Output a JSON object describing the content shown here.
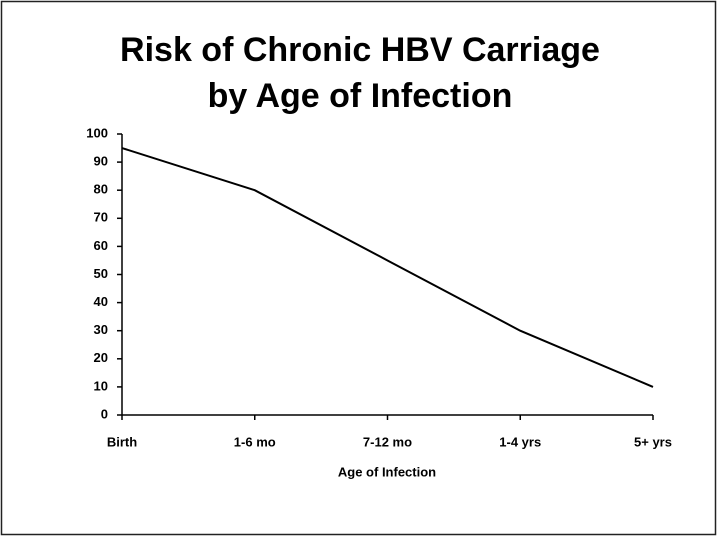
{
  "chart_data": {
    "type": "line",
    "title": [
      "Risk of Chronic HBV Carriage",
      "by Age of Infection"
    ],
    "x_label": "Age of Infection",
    "categories": [
      "Birth",
      "1-6 mo",
      "7-12 mo",
      "1-4 yrs",
      "5+ yrs"
    ],
    "values": [
      95,
      80,
      55,
      30,
      10
    ],
    "color": "#000000",
    "ylim": [
      0,
      100
    ],
    "yticks": [
      0,
      10,
      20,
      30,
      40,
      50,
      60,
      70,
      80,
      90,
      100
    ],
    "grid": false
  }
}
